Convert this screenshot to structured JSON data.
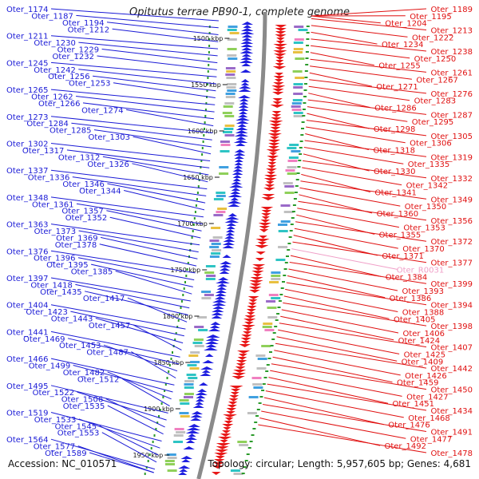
{
  "title": "Opitutus terrae PB90-1, complete genome",
  "footer": {
    "accession": "Accession: NC_010571",
    "summary": "Topology: circular; Length: 5,957,605 bp; Genes: 4,681"
  },
  "colors": {
    "left_labels": "#1a1ad6",
    "right_labels": "#e01010",
    "rna_label": "#f0a0c8",
    "backbone": "#8a8a8a",
    "gc_marks": "#2a9a2a"
  },
  "scale_labels": [
    "1500 kbp",
    "1550 kbp",
    "1600 kbp",
    "1650 kbp",
    "1700 kbp",
    "1750 kbp",
    "1800 kbp",
    "1850 kbp",
    "1900 kbp",
    "1950 kbp"
  ],
  "left_genes": [
    "Oter_1174",
    "Oter_1187",
    "Oter_1194",
    "Oter_1212",
    "Oter_1211",
    "Oter_1230",
    "Oter_1229",
    "Oter_1232",
    "Oter_1245",
    "Oter_1242",
    "Oter_1256",
    "Oter_1253",
    "Oter_1265",
    "Oter_1262",
    "Oter_1266",
    "Oter_1274",
    "Oter_1273",
    "Oter_1284",
    "Oter_1285",
    "Oter_1303",
    "Oter_1302",
    "Oter_1317",
    "Oter_1312",
    "Oter_1326",
    "Oter_1337",
    "Oter_1336",
    "Oter_1346",
    "Oter_1344",
    "Oter_1348",
    "Oter_1361",
    "Oter_1357",
    "Oter_1352",
    "Oter_1363",
    "Oter_1373",
    "Oter_1369",
    "Oter_1378",
    "Oter_1376",
    "Oter_1396",
    "Oter_1395",
    "Oter_1385",
    "Oter_1397",
    "Oter_1418",
    "Oter_1435",
    "Oter_1417",
    "Oter_1404",
    "Oter_1423",
    "Oter_1443",
    "Oter_1457",
    "Oter_1441",
    "Oter_1469",
    "Oter_1453",
    "Oter_1487",
    "Oter_1466",
    "Oter_1499",
    "Oter_1482",
    "Oter_1512",
    "Oter_1495",
    "Oter_1522",
    "Oter_1506",
    "Oter_1535",
    "Oter_1519",
    "Oter_1533",
    "Oter_1545",
    "Oter_1553",
    "Oter_1564",
    "Oter_1577",
    "Oter_1589"
  ],
  "right_genes": [
    "Oter_1189",
    "Oter_1195",
    "Oter_1204",
    "Oter_1213",
    "Oter_1222",
    "Oter_1234",
    "Oter_1238",
    "Oter_1250",
    "Oter_1255",
    "Oter_1261",
    "Oter_1267",
    "Oter_1271",
    "Oter_1276",
    "Oter_1283",
    "Oter_1286",
    "Oter_1287",
    "Oter_1295",
    "Oter_1298",
    "Oter_1305",
    "Oter_1306",
    "Oter_1318",
    "Oter_1319",
    "Oter_1335",
    "Oter_1330",
    "Oter_1332",
    "Oter_1342",
    "Oter_1341",
    "Oter_1349",
    "Oter_1350",
    "Oter_1360",
    "Oter_1356",
    "Oter_1353",
    "Oter_1355",
    "Oter_1372",
    "Oter_1370",
    "Oter_1371",
    "Oter_1377",
    "Oter_R0031",
    "Oter_1384",
    "Oter_1399",
    "Oter_1393",
    "Oter_1386",
    "Oter_1394",
    "Oter_1388",
    "Oter_1405",
    "Oter_1398",
    "Oter_1406",
    "Oter_1424",
    "Oter_1407",
    "Oter_1425",
    "Oter_1409",
    "Oter_1442",
    "Oter_1426",
    "Oter_1459",
    "Oter_1450",
    "Oter_1427",
    "Oter_1451",
    "Oter_1434",
    "Oter_1468",
    "Oter_1476",
    "Oter_1491",
    "Oter_1477",
    "Oter_1492",
    "Oter_1478"
  ]
}
